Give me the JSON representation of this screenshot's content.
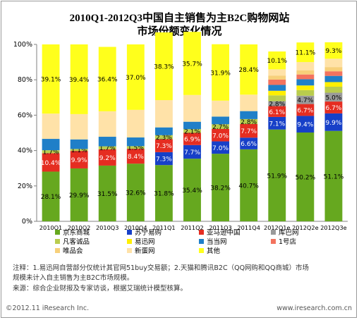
{
  "chart_data": {
    "type": "stacked-bar",
    "title": "2010Q1-2012Q3中国自主销售为主B2C购物网站",
    "subtitle": "市场份额变化情况",
    "categories": [
      "2010Q1",
      "2010Q2",
      "2010Q3",
      "2010Q4",
      "2011Q1",
      "2011Q2",
      "2011Q3",
      "2011Q4",
      "2012Q1e",
      "2012Q2e",
      "2012Q3e"
    ],
    "y_ticks": [
      "0%",
      "20%",
      "40%",
      "60%",
      "80%",
      "100%"
    ],
    "ylim": [
      0,
      100
    ],
    "grid": false,
    "legend_position": "bottom",
    "series": [
      {
        "name": "京东商城",
        "color": "#66a81f",
        "values": [
          28.1,
          29.9,
          31.5,
          32.6,
          31.8,
          35.4,
          38.2,
          40.7,
          51.9,
          50.2,
          51.1
        ],
        "labels": [
          "28.1%",
          "29.9%",
          "31.5%",
          "32.6%",
          "31.8%",
          "35.4%",
          "38.2%",
          "40.7%",
          "51.9%",
          "50.2%",
          "51.1%"
        ]
      },
      {
        "name": "苏宁易购",
        "color": "#1740c8",
        "values": [
          0,
          0,
          0,
          0,
          7.3,
          7.7,
          7.0,
          6.6,
          7.1,
          9.4,
          9.9
        ],
        "labels": [
          "",
          "",
          "",
          "",
          "7.3%",
          "7.7%",
          "7.0%",
          "6.6%",
          "7.1%",
          "9.4%",
          "9.9%"
        ]
      },
      {
        "name": "亚马逊中国",
        "color": "#e52d21",
        "values": [
          10.4,
          9.9,
          9.2,
          8.4,
          7.3,
          6.9,
          7.0,
          7.7,
          6.1,
          6.7,
          6.7
        ],
        "labels": [
          "10.4%",
          "9.9%",
          "9.2%",
          "8.4%",
          "7.3%",
          "6.9%",
          "7.0%",
          "7.7%",
          "6.1%",
          "6.7%",
          "6.7%"
        ]
      },
      {
        "name": "库巴网",
        "color": "#9a9a9a",
        "values": [
          0,
          0,
          0,
          0,
          0,
          0,
          0,
          0,
          2.8,
          4.7,
          5.0
        ],
        "labels": [
          "",
          "",
          "",
          "",
          "",
          "",
          "",
          "",
          "2.8%",
          "4.7%",
          "5.0%"
        ]
      },
      {
        "name": "凡客诚品",
        "color": "#b9cc4d",
        "values": [
          1.7,
          1.1,
          1.7,
          1.5,
          2.3,
          2.1,
          2.7,
          2.8,
          3.3,
          3.2,
          3.4
        ],
        "labels": [
          "1.7%",
          "1.1%",
          "1.7%",
          "1.5%",
          "2.3%",
          "2.1%",
          "2.7%",
          "2.8%",
          "",
          "",
          ""
        ]
      },
      {
        "name": "易迅网",
        "color": "#ffef00",
        "values": [
          0,
          0,
          0,
          0,
          0,
          0,
          0,
          0,
          2.6,
          2.6,
          2.6
        ],
        "labels": [
          "",
          "",
          "",
          "",
          "",
          "",
          "",
          "",
          "",
          "",
          ""
        ]
      },
      {
        "name": "当当网",
        "color": "#1f7fc8",
        "values": [
          6.4,
          5.4,
          5.4,
          4.9,
          4.4,
          4.2,
          4.3,
          4.5,
          3.3,
          3.5,
          3.5
        ],
        "labels": [
          "",
          "",
          "",
          "",
          "",
          "",
          "",
          "",
          "",
          "",
          ""
        ]
      },
      {
        "name": "1号店",
        "color": "#f3735e",
        "values": [
          0,
          0,
          0,
          0,
          0,
          0,
          0,
          0,
          3.0,
          2.7,
          2.6
        ],
        "labels": [
          "",
          "",
          "",
          "",
          "",
          "",
          "",
          "",
          "",
          "",
          ""
        ]
      },
      {
        "name": "唯品会",
        "color": "#f7d07a",
        "values": [
          0,
          0,
          0,
          0,
          0,
          0,
          0,
          0,
          2.3,
          2.4,
          2.4
        ],
        "labels": [
          "",
          "",
          "",
          "",
          "",
          "",
          "",
          "",
          "",
          "",
          ""
        ]
      },
      {
        "name": "新蛋网",
        "color": "#ffe2a8",
        "values": [
          14.3,
          14.3,
          14.4,
          15.6,
          15.4,
          15.1,
          9.0,
          9.3,
          3.5,
          4.6,
          4.7
        ],
        "labels": [
          "",
          "",
          "",
          "",
          "",
          "",
          "",
          "",
          "",
          "",
          ""
        ]
      },
      {
        "name": "其他",
        "color": "#ffff1c",
        "values": [
          39.1,
          39.4,
          36.4,
          37.0,
          38.3,
          35.7,
          31.9,
          28.4,
          10.1,
          11.1,
          9.3
        ],
        "labels": [
          "39.1%",
          "39.4%",
          "36.4%",
          "37.0%",
          "38.3%",
          "35.7%",
          "31.9%",
          "28.4%",
          "10.1%",
          "11.1%",
          "9.3%"
        ]
      }
    ]
  },
  "notes": {
    "line1": "注释：1.易迅网自营部分仅统计其官网51buy交易额；2.天猫和腾讯B2C（QQ网购和QQ商城）市场",
    "line2": "规模未计入自主销售为主B2C市场规模。",
    "line3": "来源：综合企业财报及专家访谈，根据艾瑞统计模型核算。"
  },
  "footer": {
    "left": "©2012.11 iResearch Inc.",
    "right": "www.iresearch.com.cn"
  }
}
